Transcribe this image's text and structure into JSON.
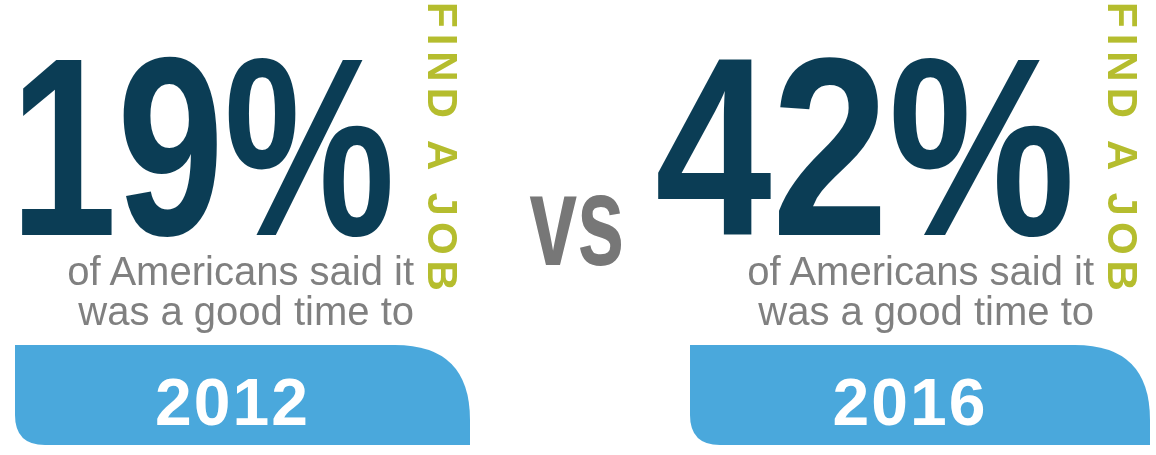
{
  "chart_data": {
    "type": "other",
    "categories": [
      "2012",
      "2016"
    ],
    "values": [
      19,
      42
    ],
    "value_labels": [
      "19%",
      "42%"
    ],
    "annotations": [
      "of Americans said it was a good time to",
      "FIND A JOB",
      "vs"
    ],
    "colors": [
      "#0b3d55",
      "#0b3d55"
    ]
  }
}
